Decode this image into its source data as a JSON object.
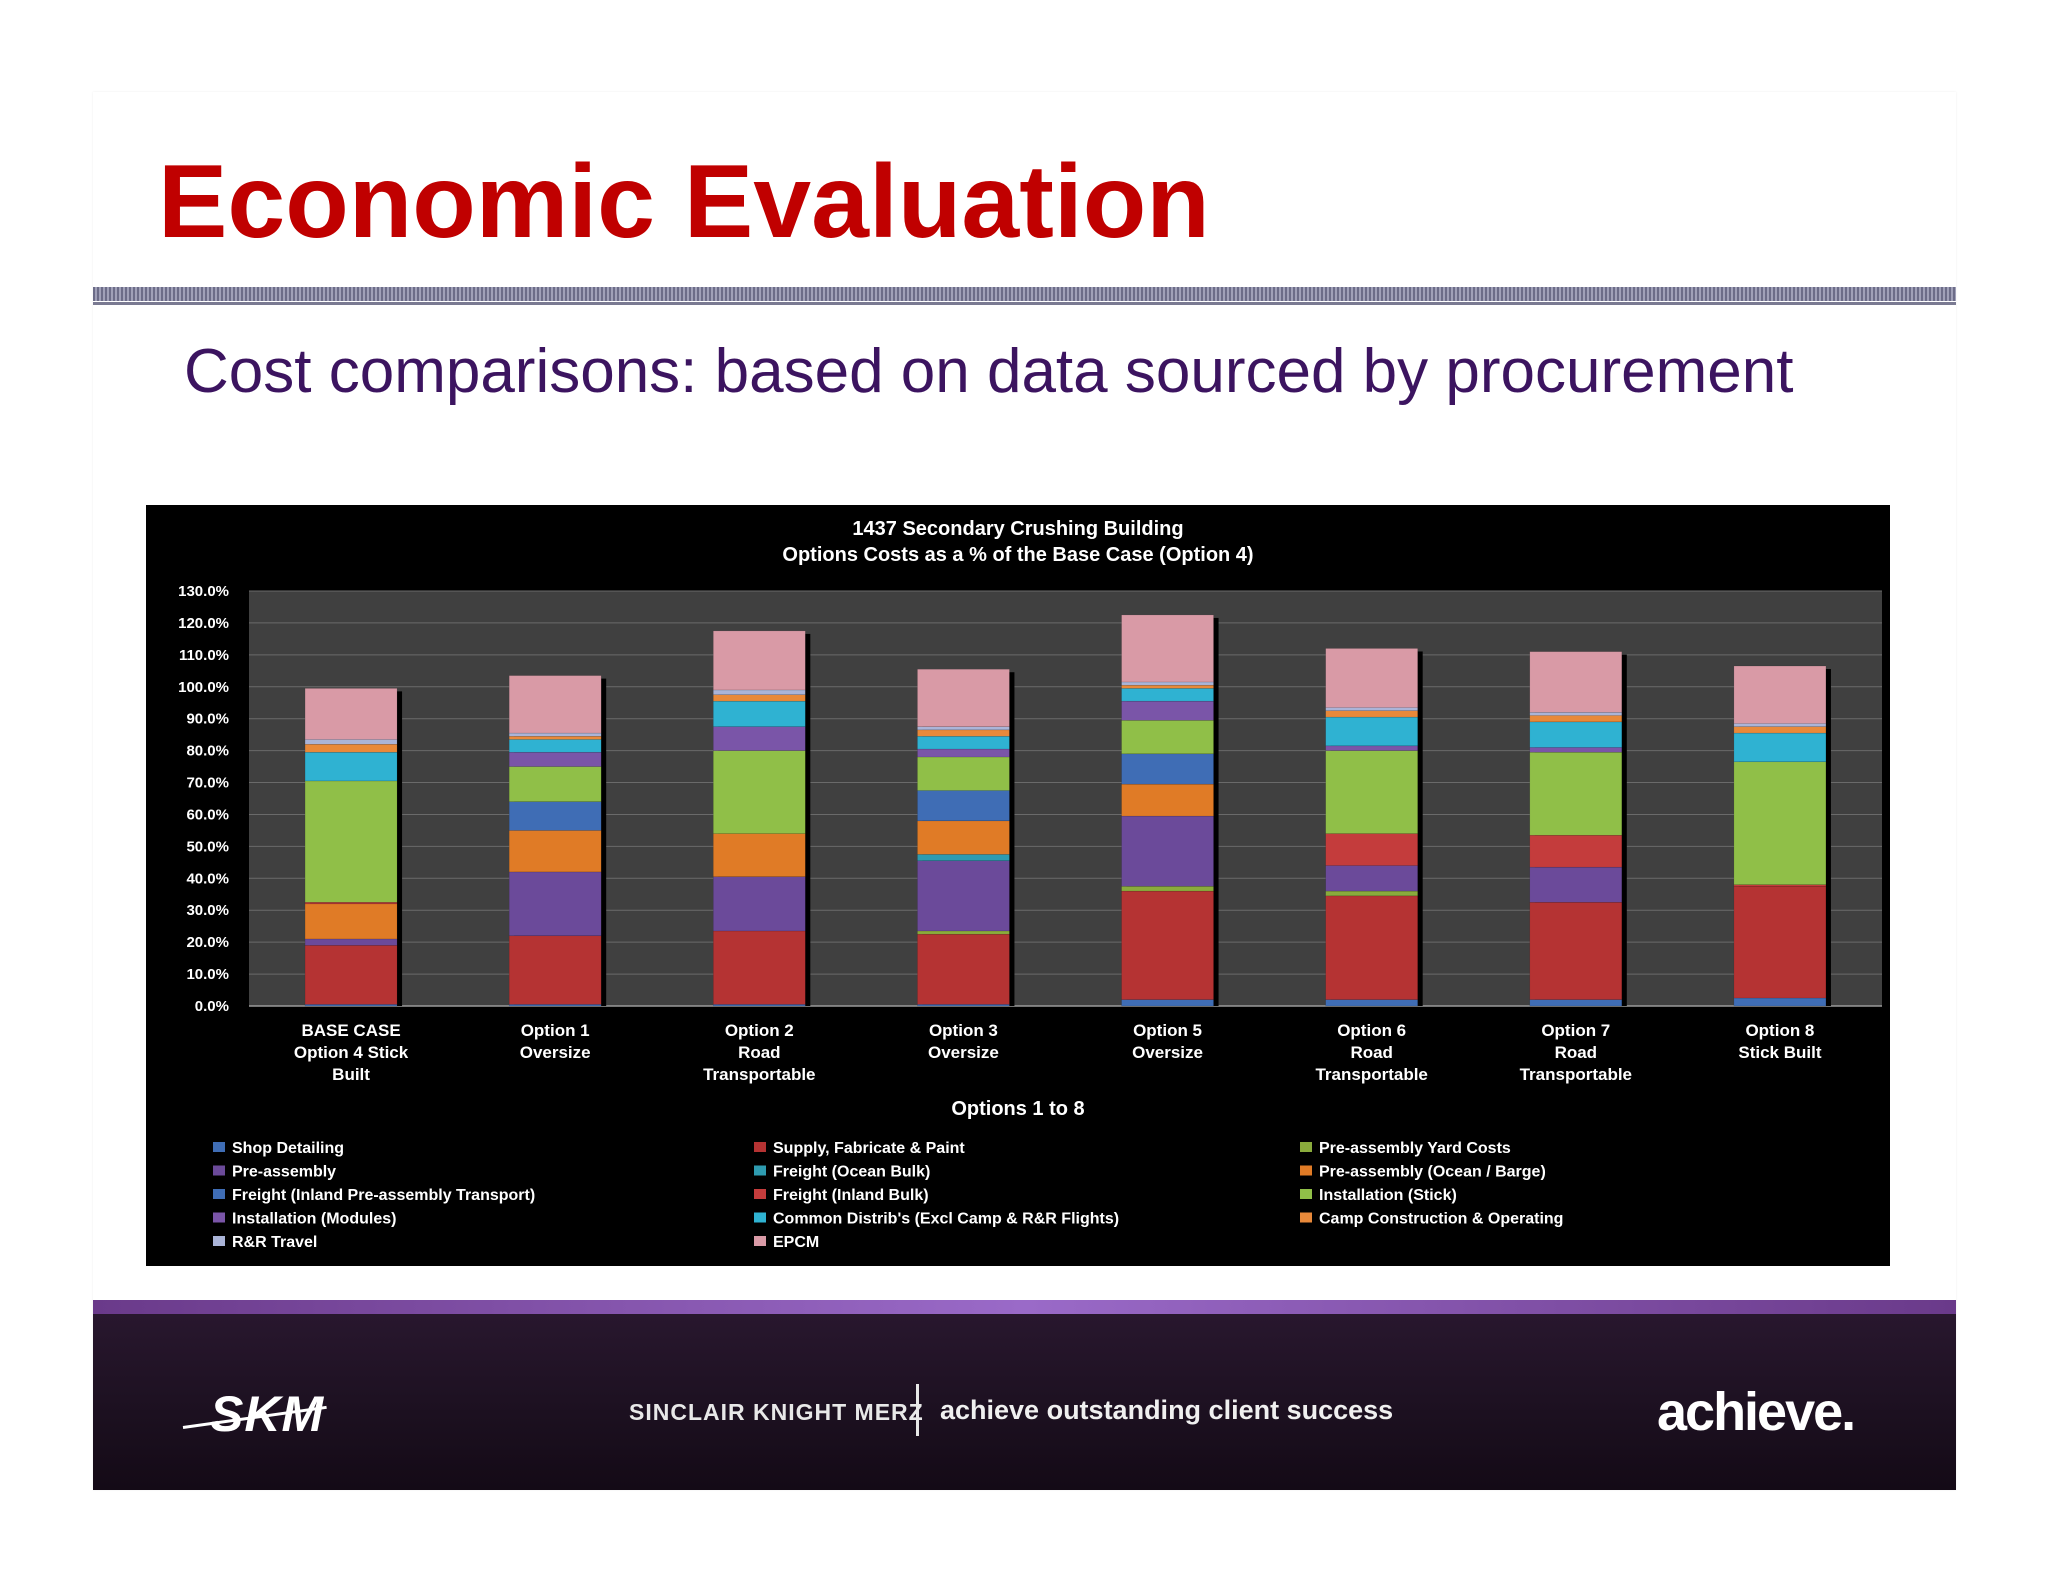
{
  "slide": {
    "title": "Economic Evaluation",
    "subtitle": "Cost comparisons: based on data sourced by procurement"
  },
  "footer": {
    "logo_text": "SKM",
    "company": "SINCLAIR KNIGHT MERZ",
    "tagline": "achieve outstanding client success",
    "brand": "achieve."
  },
  "chart_data": {
    "type": "bar",
    "stacked": true,
    "title": "1437 Secondary Crushing Building",
    "subtitle": "Options Costs as a % of the Base Case (Option 4)",
    "xlabel": "Options 1 to 8",
    "ylabel": "",
    "ylim": [
      0,
      130
    ],
    "yticks": [
      "0.0%",
      "10.0%",
      "20.0%",
      "30.0%",
      "40.0%",
      "50.0%",
      "60.0%",
      "70.0%",
      "80.0%",
      "90.0%",
      "100.0%",
      "110.0%",
      "120.0%",
      "130.0%"
    ],
    "grid": true,
    "background": "#000000",
    "plot_background": "#404040",
    "legend_position": "bottom",
    "categories": [
      [
        "BASE CASE",
        "Option 4 Stick",
        "Built"
      ],
      [
        "Option 1",
        "Oversize"
      ],
      [
        "Option 2",
        "Road",
        "Transportable"
      ],
      [
        "Option 3",
        "Oversize"
      ],
      [
        "Option 5",
        "Oversize"
      ],
      [
        "Option 6",
        "Road",
        "Transportable"
      ],
      [
        "Option 7",
        "Road",
        "Transportable"
      ],
      [
        "Option 8",
        "Stick Built"
      ]
    ],
    "series": [
      {
        "name": "Shop Detailing",
        "color": "#3f6db5",
        "values": [
          0.5,
          0.5,
          0.5,
          0.5,
          2.0,
          2.0,
          2.0,
          2.5
        ]
      },
      {
        "name": "Supply, Fabricate & Paint",
        "color": "#b53333",
        "values": [
          18.5,
          21.5,
          23.0,
          22.0,
          34.0,
          32.5,
          30.5,
          35.0
        ]
      },
      {
        "name": "Pre-assembly Yard Costs",
        "color": "#8aab3c",
        "values": [
          0,
          0,
          0,
          1.0,
          1.5,
          1.5,
          0,
          0
        ]
      },
      {
        "name": "Pre-assembly",
        "color": "#6b4a9a",
        "values": [
          2.0,
          20.0,
          17.0,
          22.0,
          22.0,
          8.0,
          11.0,
          0
        ]
      },
      {
        "name": "Freight (Ocean Bulk)",
        "color": "#2e9bb0",
        "values": [
          0,
          0,
          0,
          2.0,
          0,
          0,
          0,
          0
        ]
      },
      {
        "name": "Pre-assembly (Ocean / Barge)",
        "color": "#e07b26",
        "values": [
          11.0,
          13.0,
          13.5,
          10.5,
          10.0,
          0,
          0,
          0
        ]
      },
      {
        "name": "Freight (Inland Pre-assembly Transport)",
        "color": "#3f6db5",
        "values": [
          0,
          9.0,
          0,
          9.5,
          9.5,
          0,
          0,
          0
        ]
      },
      {
        "name": "Freight (Inland Bulk)",
        "color": "#c43c3c",
        "values": [
          0.5,
          0,
          0,
          0,
          0,
          10.0,
          10.0,
          0.5
        ]
      },
      {
        "name": "Installation (Stick)",
        "color": "#90bf48",
        "values": [
          38.0,
          11.0,
          26.0,
          10.5,
          10.5,
          26.0,
          26.0,
          38.5
        ]
      },
      {
        "name": "Installation (Modules)",
        "color": "#7a55a8",
        "values": [
          0,
          4.5,
          7.5,
          2.5,
          6.0,
          1.5,
          1.5,
          0
        ]
      },
      {
        "name": "Common Distrib's (Excl Camp & R&R Flights)",
        "color": "#2fb2d2",
        "values": [
          9.0,
          4.0,
          8.0,
          4.0,
          4.0,
          9.0,
          8.0,
          9.0
        ]
      },
      {
        "name": "Camp Construction & Operating",
        "color": "#e8893a",
        "values": [
          2.5,
          1.0,
          2.0,
          2.0,
          1.0,
          2.0,
          2.0,
          2.0
        ]
      },
      {
        "name": "R&R Travel",
        "color": "#aab4d8",
        "values": [
          1.5,
          1.0,
          1.5,
          1.0,
          1.0,
          1.0,
          1.0,
          1.0
        ]
      },
      {
        "name": "EPCM",
        "color": "#d99aa6",
        "values": [
          16.0,
          18.0,
          18.5,
          18.0,
          21.0,
          18.5,
          19.0,
          18.0
        ]
      }
    ]
  }
}
